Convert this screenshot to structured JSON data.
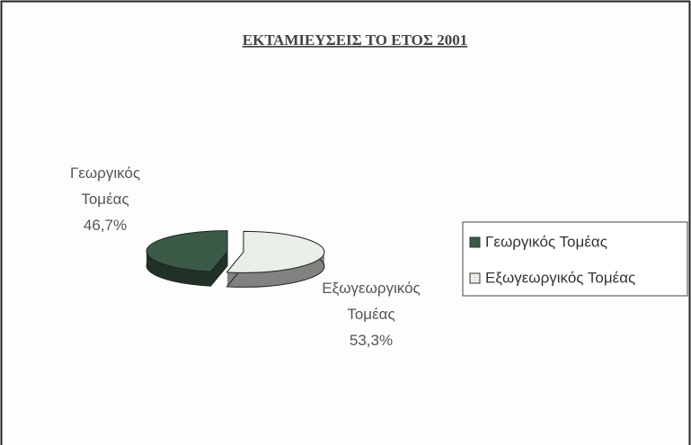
{
  "chart_data": {
    "type": "pie3d",
    "title": "ΕΚΤΑΜΙΕΥΣΕΙΣ ΤΟ ΕΤΟΣ 2001",
    "categories": [
      "Γεωργικός Τομέας",
      "Εξωγεωργικός Τομέας"
    ],
    "values": [
      46.7,
      53.3
    ],
    "value_labels": [
      "46,7%",
      "53,3%"
    ],
    "colors": [
      "#3b5a47",
      "#e9eee7"
    ],
    "legend": "right"
  }
}
